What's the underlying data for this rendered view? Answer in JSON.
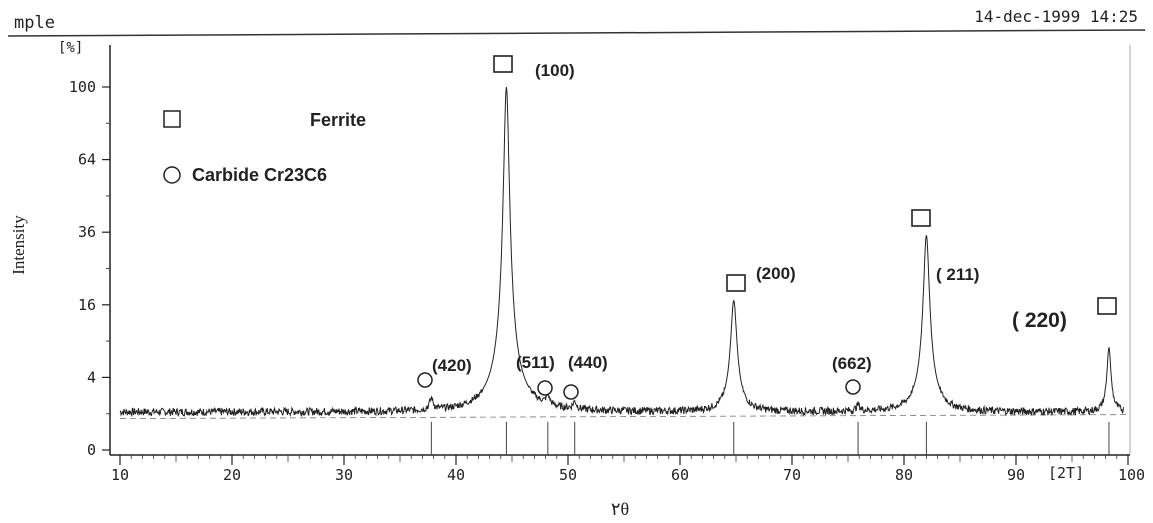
{
  "header": {
    "left_text": "mple",
    "right_text": "14-dec-1999 14:25"
  },
  "chart_data": {
    "type": "line",
    "xlabel": "۲θ",
    "ylabel": "Intensity",
    "y_unit_label": "[%]",
    "x_unit_label": "[2T]",
    "xlim": [
      10,
      100
    ],
    "ylim": [
      0,
      110
    ],
    "y_scale": "sqrt",
    "y_ticks": [
      0,
      4,
      16,
      36,
      64,
      100
    ],
    "x_ticks": [
      10,
      20,
      30,
      40,
      50,
      60,
      70,
      80,
      90,
      100
    ],
    "grid": false,
    "legend": {
      "placement": "top-left",
      "entries": [
        {
          "symbol": "square",
          "label": "Ferrite"
        },
        {
          "symbol": "circle",
          "label": "Carbide Cr23C6"
        }
      ]
    },
    "series": [
      {
        "baseline": 1.1,
        "peaks": [
          {
            "x": 37.8,
            "y": 1.9
          },
          {
            "x": 44.5,
            "y": 100
          },
          {
            "x": 48.2,
            "y": 1.8
          },
          {
            "x": 50.6,
            "y": 1.6
          },
          {
            "x": 64.8,
            "y": 17
          },
          {
            "x": 75.9,
            "y": 1.5
          },
          {
            "x": 82.0,
            "y": 35
          },
          {
            "x": 98.3,
            "y": 8
          }
        ]
      }
    ],
    "annotations": [
      {
        "text": "(100)",
        "x": 44.5,
        "y": 100,
        "symbol": "square"
      },
      {
        "text": "(200)",
        "x": 64.8,
        "y": 17,
        "symbol": "square"
      },
      {
        "text": "( 211)",
        "x": 82.0,
        "y": 35,
        "symbol": "square"
      },
      {
        "text": "( 220)",
        "x": 98.3,
        "y": 8,
        "symbol": "square"
      },
      {
        "text": "(420)",
        "x": 37.8,
        "y": 1.9,
        "symbol": "circle"
      },
      {
        "text": "(511)",
        "x": 48.2,
        "y": 1.8,
        "symbol": "circle"
      },
      {
        "text": "(440)",
        "x": 50.6,
        "y": 1.6,
        "symbol": "circle"
      },
      {
        "text": "(662)",
        "x": 75.9,
        "y": 1.5,
        "symbol": "circle"
      }
    ]
  }
}
